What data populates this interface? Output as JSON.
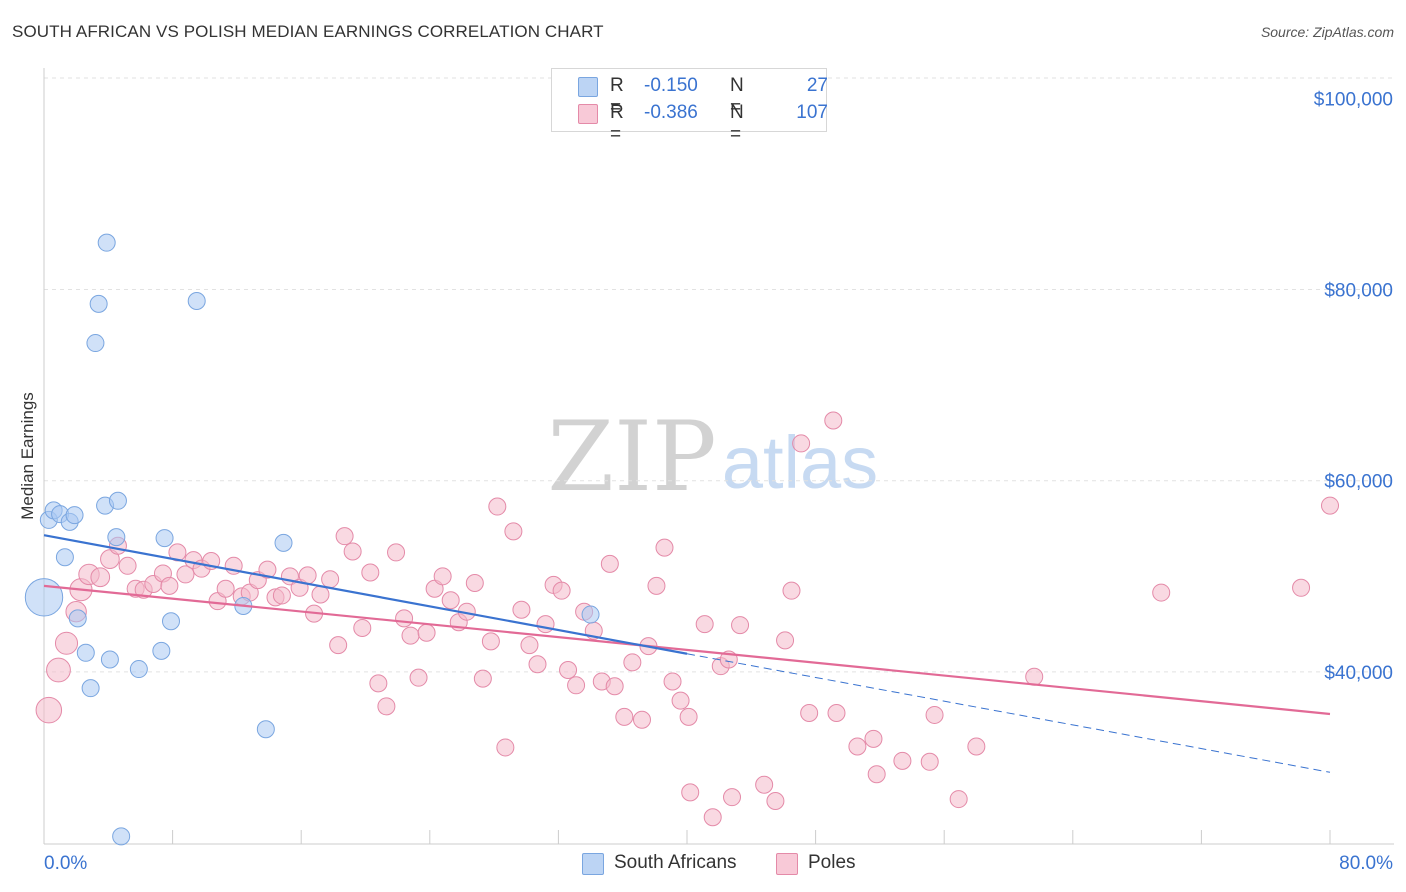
{
  "title": "SOUTH AFRICAN VS POLISH MEDIAN EARNINGS CORRELATION CHART",
  "source": "Source: ZipAtlas.com",
  "watermark": {
    "zip": "ZIP",
    "atlas": "atlas"
  },
  "legend": {
    "rows": [
      {
        "r_label": "R =",
        "r_value": "-0.150",
        "n_label": "N =",
        "n_value": "27"
      },
      {
        "r_label": "R =",
        "r_value": "-0.386",
        "n_label": "N =",
        "n_value": "107"
      }
    ]
  },
  "chart_data": {
    "type": "scatter",
    "title": "SOUTH AFRICAN VS POLISH MEDIAN EARNINGS CORRELATION CHART",
    "ylabel": "Median Earnings",
    "xlabel": "",
    "xlim": [
      0,
      80
    ],
    "ylim": [
      22000,
      103000
    ],
    "x_tick_labels": [
      "0.0%",
      "80.0%"
    ],
    "y_ticks": [
      40000,
      60000,
      80000,
      100000
    ],
    "y_tick_labels": [
      "$40,000",
      "$60,000",
      "$80,000",
      "$100,000"
    ],
    "grid": true,
    "legend_position": "top-center",
    "series": [
      {
        "name": "South Africans",
        "color": "#a9c8f2",
        "stroke": "#7aa6e0",
        "trend": {
          "x": [
            0,
            40
          ],
          "y": [
            54300,
            41900
          ],
          "color": "#3a73d0",
          "dash_to": [
            80,
            29500
          ]
        },
        "points": [
          [
            0.0,
            47800,
            2.2
          ],
          [
            0.3,
            55900,
            1
          ],
          [
            0.6,
            56900,
            1
          ],
          [
            1.0,
            56500,
            1
          ],
          [
            1.3,
            52000,
            1
          ],
          [
            1.6,
            55700,
            1
          ],
          [
            1.9,
            56400,
            1
          ],
          [
            2.1,
            45600,
            1
          ],
          [
            2.6,
            42000,
            1
          ],
          [
            2.9,
            38300,
            1
          ],
          [
            3.2,
            74400,
            1
          ],
          [
            3.4,
            78500,
            1
          ],
          [
            3.8,
            57400,
            1
          ],
          [
            3.9,
            84900,
            1
          ],
          [
            4.1,
            41300,
            1
          ],
          [
            4.5,
            54100,
            1
          ],
          [
            4.6,
            57900,
            1
          ],
          [
            4.8,
            22800,
            1
          ],
          [
            5.9,
            40300,
            1
          ],
          [
            7.3,
            42200,
            1
          ],
          [
            7.5,
            54000,
            1
          ],
          [
            7.9,
            45300,
            1
          ],
          [
            9.5,
            78800,
            1
          ],
          [
            12.4,
            46900,
            1
          ],
          [
            13.8,
            34000,
            1
          ],
          [
            14.9,
            53500,
            1
          ],
          [
            34.0,
            46000,
            1
          ]
        ]
      },
      {
        "name": "Poles",
        "color": "#f4b9cb",
        "stroke": "#e48aa8",
        "trend": {
          "x": [
            0,
            80
          ],
          "y": [
            49000,
            35600
          ],
          "color": "#e26a96"
        },
        "points": [
          [
            0.3,
            36000,
            1.5
          ],
          [
            0.9,
            40200,
            1.4
          ],
          [
            1.4,
            43000,
            1.3
          ],
          [
            2.0,
            46300,
            1.2
          ],
          [
            2.3,
            48600,
            1.3
          ],
          [
            2.8,
            50200,
            1.2
          ],
          [
            3.5,
            49900,
            1.1
          ],
          [
            4.1,
            51800,
            1.1
          ],
          [
            4.6,
            53200,
            1
          ],
          [
            5.2,
            51100,
            1
          ],
          [
            5.7,
            48700,
            1
          ],
          [
            6.2,
            48600,
            1
          ],
          [
            6.8,
            49200,
            1
          ],
          [
            7.4,
            50300,
            1
          ],
          [
            7.8,
            49000,
            1
          ],
          [
            8.3,
            52500,
            1
          ],
          [
            8.8,
            50200,
            1
          ],
          [
            9.3,
            51700,
            1
          ],
          [
            9.8,
            50800,
            1
          ],
          [
            10.4,
            51600,
            1
          ],
          [
            10.8,
            47400,
            1
          ],
          [
            11.3,
            48700,
            1
          ],
          [
            11.8,
            51100,
            1
          ],
          [
            12.3,
            47900,
            1
          ],
          [
            12.8,
            48300,
            1
          ],
          [
            13.3,
            49600,
            1
          ],
          [
            13.9,
            50700,
            1
          ],
          [
            14.4,
            47800,
            1
          ],
          [
            14.8,
            48000,
            1
          ],
          [
            15.3,
            50000,
            1
          ],
          [
            15.9,
            48800,
            1
          ],
          [
            16.4,
            50100,
            1
          ],
          [
            16.8,
            46100,
            1
          ],
          [
            17.2,
            48100,
            1
          ],
          [
            17.8,
            49700,
            1
          ],
          [
            18.3,
            42800,
            1
          ],
          [
            18.7,
            54200,
            1
          ],
          [
            19.2,
            52600,
            1
          ],
          [
            19.8,
            44600,
            1
          ],
          [
            20.3,
            50400,
            1
          ],
          [
            20.8,
            38800,
            1
          ],
          [
            21.3,
            36400,
            1
          ],
          [
            21.9,
            52500,
            1
          ],
          [
            22.4,
            45600,
            1
          ],
          [
            22.8,
            43800,
            1
          ],
          [
            23.3,
            39400,
            1
          ],
          [
            23.8,
            44100,
            1
          ],
          [
            24.3,
            48700,
            1
          ],
          [
            24.8,
            50000,
            1
          ],
          [
            25.3,
            47500,
            1
          ],
          [
            25.8,
            45200,
            1
          ],
          [
            26.3,
            46300,
            1
          ],
          [
            26.8,
            49300,
            1
          ],
          [
            27.3,
            39300,
            1
          ],
          [
            27.8,
            43200,
            1
          ],
          [
            28.2,
            57300,
            1
          ],
          [
            28.7,
            32100,
            1
          ],
          [
            29.2,
            54700,
            1
          ],
          [
            29.7,
            46500,
            1
          ],
          [
            30.2,
            42800,
            1
          ],
          [
            30.7,
            40800,
            1
          ],
          [
            31.2,
            45000,
            1
          ],
          [
            31.7,
            49100,
            1
          ],
          [
            32.2,
            48500,
            1
          ],
          [
            32.6,
            40200,
            1
          ],
          [
            33.1,
            38600,
            1
          ],
          [
            33.6,
            46300,
            1
          ],
          [
            34.2,
            44300,
            1
          ],
          [
            34.7,
            39000,
            1
          ],
          [
            35.2,
            51300,
            1
          ],
          [
            35.5,
            38500,
            1
          ],
          [
            36.1,
            35300,
            1
          ],
          [
            36.6,
            41000,
            1
          ],
          [
            37.2,
            35000,
            1
          ],
          [
            37.6,
            42700,
            1
          ],
          [
            38.1,
            49000,
            1
          ],
          [
            38.6,
            53000,
            1
          ],
          [
            39.1,
            39000,
            1
          ],
          [
            39.6,
            37000,
            1
          ],
          [
            40.1,
            35300,
            1
          ],
          [
            40.2,
            27400,
            1
          ],
          [
            41.1,
            45000,
            1
          ],
          [
            41.6,
            24800,
            1
          ],
          [
            42.1,
            40600,
            1
          ],
          [
            42.6,
            41300,
            1
          ],
          [
            42.8,
            26900,
            1
          ],
          [
            43.3,
            44900,
            1
          ],
          [
            44.8,
            28200,
            1
          ],
          [
            45.5,
            26500,
            1
          ],
          [
            46.1,
            43300,
            1
          ],
          [
            46.5,
            48500,
            1
          ],
          [
            47.1,
            63900,
            1
          ],
          [
            47.6,
            35700,
            1
          ],
          [
            49.1,
            66300,
            1
          ],
          [
            49.3,
            35700,
            1
          ],
          [
            50.6,
            32200,
            1
          ],
          [
            51.6,
            33000,
            1
          ],
          [
            51.8,
            29300,
            1
          ],
          [
            53.4,
            30700,
            1
          ],
          [
            55.1,
            30600,
            1
          ],
          [
            55.4,
            35500,
            1
          ],
          [
            56.9,
            26700,
            1
          ],
          [
            58.0,
            32200,
            1
          ],
          [
            61.6,
            39500,
            1
          ],
          [
            69.5,
            48300,
            1
          ],
          [
            78.2,
            48800,
            1
          ],
          [
            80.0,
            57400,
            1
          ]
        ]
      }
    ]
  }
}
